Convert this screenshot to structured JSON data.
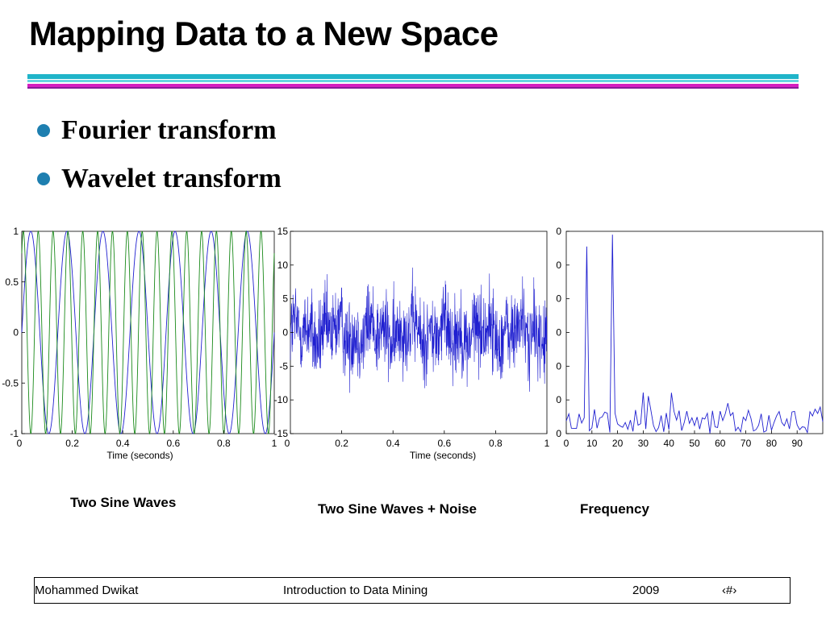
{
  "slide": {
    "title": "Mapping Data to a New Space"
  },
  "bullets": [
    "Fourier transform",
    "Wavelet transform"
  ],
  "captions": {
    "left": "Two Sine Waves",
    "middle": "Two Sine Waves + Noise",
    "right": "Frequency"
  },
  "footer": {
    "author": "Mohammed Dwikat",
    "course": "Introduction to Data Mining",
    "year": "2009",
    "page": "‹#›"
  },
  "chart_data": [
    {
      "type": "line",
      "xlabel": "Time (seconds)",
      "ylabel": "",
      "xlim": [
        0,
        1
      ],
      "ylim": [
        -1,
        1
      ],
      "x_ticks": [
        "0",
        "0.2",
        "0.4",
        "0.6",
        "0.8",
        "1"
      ],
      "y_ticks": [
        "1",
        "0.5",
        "0",
        "-0.5",
        "-1"
      ],
      "series": [
        {
          "frequency_hz": 7,
          "color": "#2020d0"
        },
        {
          "frequency_hz": 17,
          "color": "#1a8a1a"
        }
      ]
    },
    {
      "type": "line",
      "xlabel": "Time (seconds)",
      "ylabel": "",
      "xlim": [
        0,
        1
      ],
      "ylim": [
        -15,
        15
      ],
      "x_ticks": [
        "0",
        "0.2",
        "0.4",
        "0.6",
        "0.8",
        "1"
      ],
      "y_ticks": [
        "15",
        "10",
        "5",
        "0",
        "-5",
        "-10",
        "-15"
      ],
      "series": [
        {
          "description_only": true,
          "color": "#2020d0"
        }
      ]
    },
    {
      "type": "line",
      "xlabel": "",
      "ylabel": "",
      "xlim": [
        0,
        100
      ],
      "ylim": [
        0,
        600
      ],
      "x_ticks": [
        "0",
        "10",
        "20",
        "30",
        "40",
        "50",
        "60",
        "70",
        "80",
        "90"
      ],
      "y_ticks": [
        "0",
        "0",
        "0",
        "0",
        "0",
        "0",
        "0"
      ],
      "peaks": [
        {
          "x": 8,
          "y": 555
        },
        {
          "x": 18,
          "y": 590
        }
      ],
      "series": [
        {
          "color": "#2020d0"
        }
      ]
    }
  ]
}
